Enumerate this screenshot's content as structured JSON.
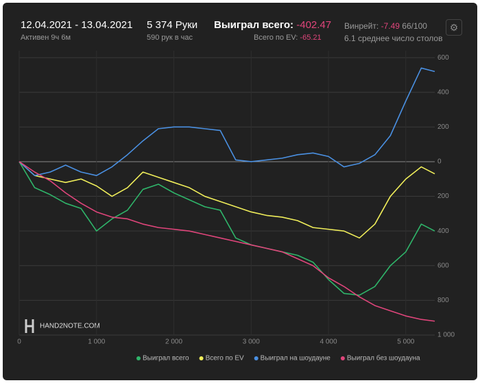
{
  "header": {
    "dates": "12.04.2021 - 13.04.2021",
    "active": "Активен 9ч 6м",
    "hands": "5 374 Руки",
    "hands_per_hour": "590 рук в час",
    "won_label": "Выиграл всего:",
    "won_value": "-402.47",
    "ev_label": "Всего по EV:",
    "ev_value": "-65.21",
    "winrate_label": "Винрейт:",
    "winrate_value": "-7.49",
    "winrate_unit": "66/100",
    "tables": "6.1 среднее число столов",
    "logo": "HAND2NOTE.COM"
  },
  "chart_data": {
    "type": "line",
    "x": [
      0,
      200,
      400,
      600,
      800,
      1000,
      1200,
      1400,
      1600,
      1800,
      2000,
      2200,
      2400,
      2600,
      2800,
      3000,
      3200,
      3400,
      3600,
      3800,
      4000,
      4200,
      4400,
      4600,
      4800,
      5000,
      5200,
      5374
    ],
    "series": [
      {
        "name": "Выиграл всего",
        "color": "#2fb56a",
        "values": [
          0,
          -150,
          -190,
          -240,
          -270,
          -400,
          -330,
          -280,
          -160,
          -130,
          -180,
          -220,
          -260,
          -280,
          -440,
          -480,
          -500,
          -520,
          -540,
          -580,
          -680,
          -760,
          -770,
          -720,
          -600,
          -520,
          -360,
          -400
        ]
      },
      {
        "name": "Всего по EV",
        "color": "#f0ee5a",
        "values": [
          0,
          -80,
          -100,
          -120,
          -100,
          -140,
          -200,
          -150,
          -60,
          -90,
          -120,
          -150,
          -200,
          -230,
          -260,
          -290,
          -310,
          -320,
          -340,
          -380,
          -390,
          -400,
          -440,
          -360,
          -200,
          -100,
          -30,
          -70
        ]
      },
      {
        "name": "Выиграл на шоудауне",
        "color": "#4a90e2",
        "values": [
          0,
          -80,
          -60,
          -20,
          -60,
          -80,
          -30,
          40,
          120,
          190,
          200,
          200,
          190,
          180,
          10,
          0,
          10,
          20,
          40,
          50,
          30,
          -30,
          -10,
          40,
          150,
          350,
          540,
          520
        ]
      },
      {
        "name": "Выиграл без шоудауна",
        "color": "#e0457b",
        "values": [
          0,
          -60,
          -110,
          -180,
          -240,
          -290,
          -320,
          -330,
          -360,
          -380,
          -390,
          -400,
          -420,
          -440,
          -460,
          -480,
          -500,
          -520,
          -560,
          -600,
          -670,
          -720,
          -780,
          -830,
          -860,
          -890,
          -910,
          -920
        ]
      }
    ],
    "xlim": [
      0,
      5374
    ],
    "xticks": [
      0,
      {
        "value": 1000,
        "label": "1 000"
      },
      {
        "value": 2000,
        "label": "2 000"
      },
      {
        "value": 3000,
        "label": "3 000"
      },
      {
        "value": 4000,
        "label": "4 000"
      },
      {
        "value": 5000,
        "label": "5 000"
      }
    ],
    "ylim": [
      -1000,
      640
    ],
    "yticks": [
      600,
      400,
      200,
      0,
      {
        "value": -200,
        "label": "200"
      },
      {
        "value": -400,
        "label": "400"
      },
      {
        "value": -600,
        "label": "600"
      },
      {
        "value": -800,
        "label": "800"
      },
      {
        "value": -1000,
        "label": "1 000"
      }
    ],
    "grid": true
  }
}
